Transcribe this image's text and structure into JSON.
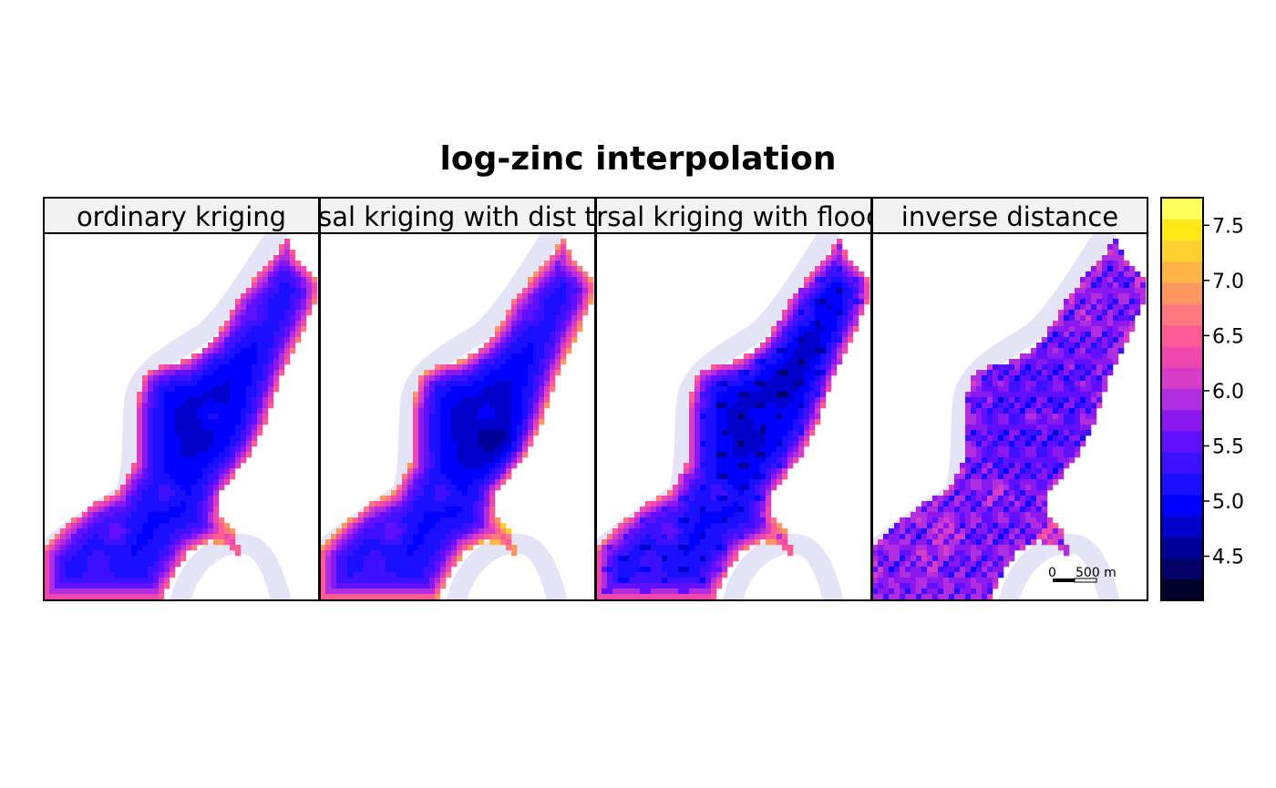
{
  "title": "log-zinc interpolation",
  "panels": [
    {
      "label": "ordinary kriging",
      "method": "ok"
    },
    {
      "label": "universal kriging with dist to river",
      "method": "uk_dist"
    },
    {
      "label": "universal kriging with flood freq",
      "method": "uk_flood"
    },
    {
      "label": "inverse distance",
      "method": "idw"
    }
  ],
  "colorkey": {
    "range": [
      4.1,
      7.75
    ],
    "ticks": [
      4.5,
      5.0,
      5.5,
      6.0,
      6.5,
      7.0,
      7.5
    ],
    "tick_labels": [
      "4.5",
      "5.0",
      "5.5",
      "6.0",
      "6.5",
      "7.0",
      "7.5"
    ],
    "colors": [
      "#00002a",
      "#000066",
      "#000099",
      "#0000cc",
      "#0000ff",
      "#1a10ff",
      "#3d10ff",
      "#6010ff",
      "#8c18f0",
      "#b02ee0",
      "#d63cc8",
      "#ee48b0",
      "#ff5c96",
      "#ff7a80",
      "#ff9860",
      "#ffb448",
      "#ffd030",
      "#ffe818",
      "#ffff60"
    ]
  },
  "scale_bar": {
    "label_start": "0",
    "label_end": "500 m"
  },
  "colors": {
    "river": "#e4e4f6",
    "river_edge": "#cfcfee",
    "strip_bg": "#f2f2f2",
    "frame": "#000000"
  }
}
